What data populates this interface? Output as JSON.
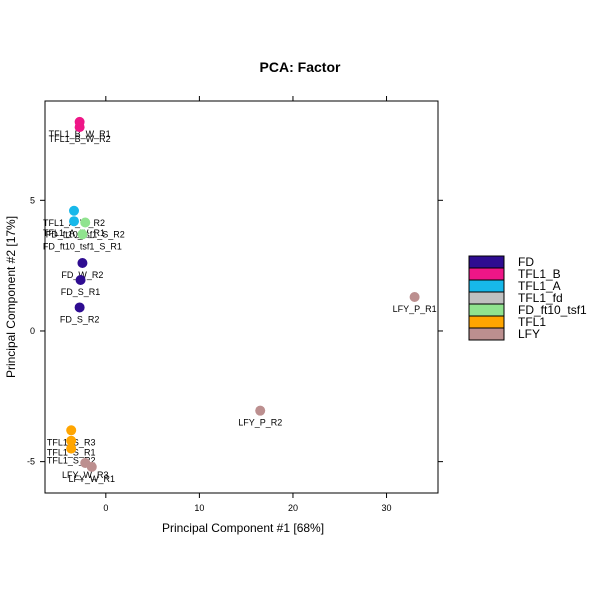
{
  "chart_data": {
    "type": "scatter",
    "title": "PCA: Factor",
    "xlabel": "Principal Component #1 [68%]",
    "ylabel": "Principal Component #2 [17%]",
    "xlim": [
      -6.5,
      35.5
    ],
    "ylim": [
      -6.2,
      8.8
    ],
    "xticks": [
      0,
      10,
      20,
      30
    ],
    "yticks": [
      -5,
      0,
      5
    ],
    "grid": false,
    "legend_position": "right",
    "series": [
      {
        "name": "FD",
        "color": "#2E0C91",
        "points": [
          {
            "x": -2.5,
            "y": 2.6,
            "label": "FD_W_R2"
          },
          {
            "x": -2.7,
            "y": 1.95,
            "label": "FD_S_R1"
          },
          {
            "x": -2.8,
            "y": 0.9,
            "label": "FD_S_R2"
          }
        ]
      },
      {
        "name": "TFL1_B",
        "color": "#EE1687",
        "points": [
          {
            "x": -2.8,
            "y": 8.0,
            "label": "TFL1_B_W_R1"
          },
          {
            "x": -2.8,
            "y": 7.8,
            "label": "TFL1_B_W_R2"
          }
        ]
      },
      {
        "name": "TFL1_A",
        "color": "#17B8EA",
        "points": [
          {
            "x": -3.4,
            "y": 4.6,
            "label": "TFL1_A_W_R2"
          },
          {
            "x": -3.4,
            "y": 4.2,
            "label": "TFL1_A_W_R1"
          }
        ]
      },
      {
        "name": "TFL1_fd",
        "color": "#C0C0C0",
        "points": []
      },
      {
        "name": "FD_ft10_tsf1",
        "color": "#90E38F",
        "points": [
          {
            "x": -2.2,
            "y": 4.15,
            "label": "FD_ft10_tsf1_S_R2"
          },
          {
            "x": -2.5,
            "y": 3.7,
            "label": "FD_ft10_tsf1_S_R1"
          }
        ]
      },
      {
        "name": "TFL1",
        "color": "#FFA500",
        "points": [
          {
            "x": -3.7,
            "y": -3.8,
            "label": "TFL1_S_R3"
          },
          {
            "x": -3.7,
            "y": -4.2,
            "label": "TFL1_S_R1"
          },
          {
            "x": -3.7,
            "y": -4.5,
            "label": "TFL1_S_R2"
          }
        ]
      },
      {
        "name": "LFY",
        "color": "#BC8F8F",
        "points": [
          {
            "x": 33.0,
            "y": 1.3,
            "label": "LFY_P_R1"
          },
          {
            "x": 16.5,
            "y": -3.05,
            "label": "LFY_P_R2"
          },
          {
            "x": -2.2,
            "y": -5.05,
            "label": "LFY_W_R3"
          },
          {
            "x": -1.5,
            "y": -5.2,
            "label": "LFY_W_R1"
          }
        ]
      }
    ]
  }
}
